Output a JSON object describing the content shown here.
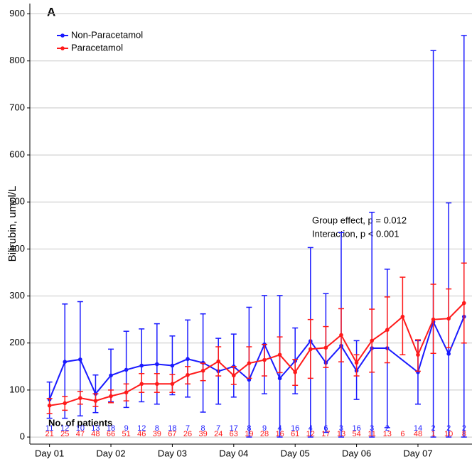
{
  "chart_data": {
    "type": "line",
    "panel_label": "A",
    "y_label": "Bilirubin, umol/L",
    "annotations": [
      "Group effect, p = 0.012",
      "Interaction, p < 0.001"
    ],
    "counts_label": "No. of patients",
    "xlim": [
      0.68,
      7.88
    ],
    "ylim": [
      -15,
      922
    ],
    "xticks": [
      {
        "value": 1,
        "label": "Day 01"
      },
      {
        "value": 2,
        "label": "Day 02"
      },
      {
        "value": 3,
        "label": "Day 03"
      },
      {
        "value": 4,
        "label": "Day 04"
      },
      {
        "value": 5,
        "label": "Day 05"
      },
      {
        "value": 6,
        "label": "Day 06"
      },
      {
        "value": 7,
        "label": "Day 07"
      }
    ],
    "yticks": [
      0,
      100,
      200,
      300,
      400,
      500,
      600,
      700,
      800,
      900
    ],
    "grid": true,
    "legend": "top-left",
    "series": [
      {
        "name": "Non-Paracetamol",
        "color": "#1a1aff",
        "x": [
          1,
          1.25,
          1.5,
          1.75,
          2,
          2.25,
          2.5,
          2.75,
          3,
          3.25,
          3.5,
          3.75,
          4,
          4.25,
          4.5,
          4.75,
          5,
          5.25,
          5.5,
          5.75,
          6,
          6.25,
          6.5,
          7,
          7.25,
          7.5,
          7.75
        ],
        "values": [
          80,
          160,
          165,
          92,
          131,
          143,
          152,
          155,
          152,
          166,
          158,
          140,
          150,
          122,
          197,
          125,
          162,
          204,
          158,
          194,
          141,
          189,
          189,
          138,
          245,
          177,
          256
        ],
        "lower": [
          40,
          40,
          45,
          52,
          75,
          63,
          75,
          70,
          90,
          85,
          53,
          70,
          85,
          0,
          92,
          0,
          92,
          0,
          10,
          0,
          80,
          0,
          20,
          70,
          0,
          0,
          0
        ],
        "upper": [
          117,
          283,
          288,
          132,
          187,
          225,
          230,
          241,
          215,
          249,
          262,
          210,
          219,
          276,
          301,
          301,
          232,
          403,
          305,
          435,
          205,
          478,
          357,
          205,
          822,
          498,
          854
        ],
        "counts": [
          11,
          12,
          10,
          13,
          18,
          9,
          12,
          8,
          18,
          7,
          8,
          7,
          17,
          8,
          9,
          4,
          16,
          4,
          6,
          3,
          16,
          3,
          2,
          14,
          2,
          2,
          2
        ]
      },
      {
        "name": "Paracetamol",
        "color": "#ff1a1a",
        "x": [
          1,
          1.25,
          1.5,
          1.75,
          2,
          2.25,
          2.5,
          2.75,
          3,
          3.25,
          3.5,
          3.75,
          4,
          4.25,
          4.5,
          4.75,
          5,
          5.25,
          5.5,
          5.75,
          6,
          6.25,
          6.5,
          6.75,
          7,
          7.25,
          7.5,
          7.75
        ],
        "values": [
          67,
          72,
          83,
          77,
          87,
          95,
          113,
          113,
          113,
          132,
          141,
          161,
          131,
          157,
          164,
          175,
          138,
          187,
          190,
          217,
          158,
          205,
          228,
          256,
          175,
          250,
          252,
          285
        ],
        "lower": [
          50,
          57,
          70,
          65,
          73,
          77,
          95,
          95,
          95,
          113,
          120,
          130,
          112,
          125,
          130,
          137,
          110,
          125,
          148,
          160,
          130,
          138,
          158,
          175,
          140,
          178,
          190,
          200
        ],
        "upper": [
          82,
          86,
          97,
          92,
          100,
          113,
          135,
          135,
          133,
          150,
          157,
          192,
          150,
          192,
          197,
          213,
          165,
          250,
          235,
          273,
          175,
          272,
          298,
          340,
          207,
          325,
          315,
          370
        ],
        "counts": [
          21,
          25,
          47,
          48,
          66,
          51,
          46,
          39,
          67,
          26,
          39,
          24,
          63,
          19,
          28,
          16,
          61,
          12,
          17,
          13,
          54,
          11,
          13,
          6,
          48,
          1,
          10,
          8
        ]
      }
    ]
  }
}
